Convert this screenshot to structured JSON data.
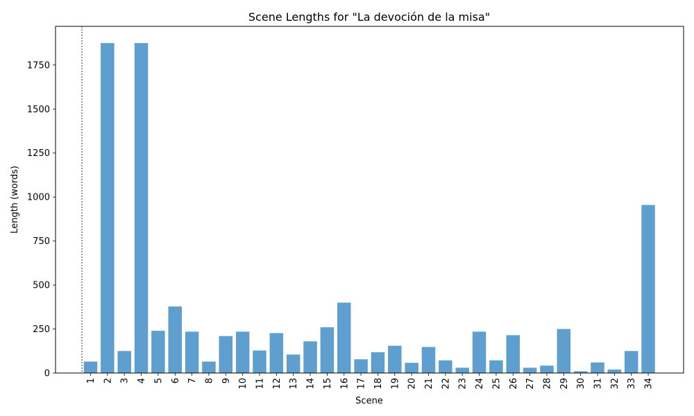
{
  "chart_data": {
    "type": "bar",
    "title": "Scene Lengths for \"La devoción de la misa\"",
    "xlabel": "Scene",
    "ylabel": "Length (words)",
    "categories": [
      "1",
      "2",
      "3",
      "4",
      "5",
      "6",
      "7",
      "8",
      "9",
      "10",
      "11",
      "12",
      "13",
      "14",
      "15",
      "16",
      "17",
      "18",
      "19",
      "20",
      "21",
      "22",
      "23",
      "24",
      "25",
      "26",
      "27",
      "28",
      "29",
      "30",
      "31",
      "32",
      "33",
      "34"
    ],
    "values": [
      65,
      1875,
      125,
      1875,
      240,
      378,
      235,
      65,
      210,
      235,
      128,
      227,
      105,
      180,
      260,
      400,
      78,
      118,
      155,
      58,
      148,
      72,
      30,
      235,
      72,
      215,
      30,
      42,
      250,
      10,
      60,
      20,
      125,
      955
    ],
    "ylim": [
      0,
      1970
    ],
    "yticks": [
      0,
      250,
      500,
      750,
      1000,
      1250,
      1500,
      1750
    ],
    "bar_color": "#5f9fcf",
    "grid": false,
    "reference_line": "dashed vertical line at left edge of plot"
  }
}
